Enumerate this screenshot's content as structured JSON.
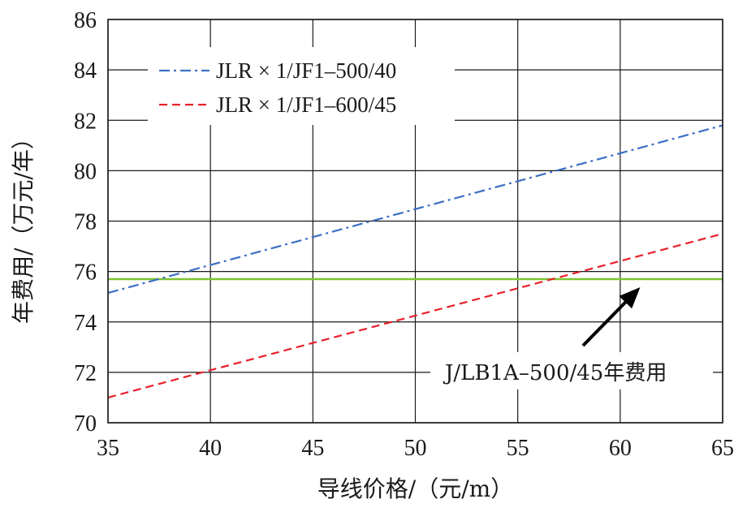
{
  "chart_data": {
    "type": "line",
    "xlabel": "导线价格/（元/m）",
    "ylabel": "年费用/（万元/年）",
    "xlim": [
      35,
      65
    ],
    "ylim": [
      70,
      86
    ],
    "xticks": [
      35,
      40,
      45,
      50,
      55,
      60,
      65
    ],
    "yticks": [
      70,
      72,
      74,
      76,
      78,
      80,
      82,
      84,
      86
    ],
    "grid": true,
    "legend_position": "top-left",
    "series": [
      {
        "name": "JLR × 1/JF1–500/40",
        "color": "#3b6fc4",
        "dash": "dashdot",
        "x": [
          35,
          65
        ],
        "y": [
          75.15,
          81.8
        ]
      },
      {
        "name": "JLR × 1/JF1–600/45",
        "color": "#e8202a",
        "dash": "dashed",
        "x": [
          35,
          65
        ],
        "y": [
          71.0,
          77.5
        ]
      }
    ],
    "reference_line": {
      "value": 75.7,
      "color": "#7cc431"
    },
    "annotation": {
      "text": "J/LB1A–500/45年费用",
      "points_to": {
        "x": 60.5,
        "y": 75.7
      }
    }
  }
}
